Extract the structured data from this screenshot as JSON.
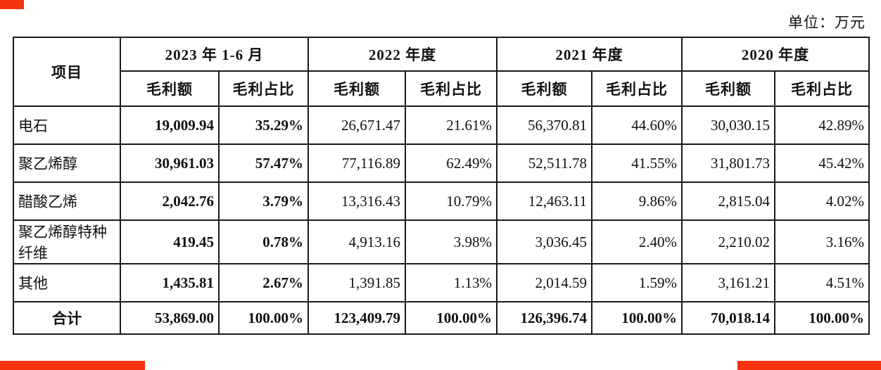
{
  "unit_label": "单位：万元",
  "colors": {
    "accent_red": "#f5330f",
    "border": "#1a1a1a",
    "background": "#ffffff"
  },
  "table": {
    "corner_header": "项目",
    "period_headers": [
      "2023 年 1-6 月",
      "2022 年度",
      "2021 年度",
      "2020 年度"
    ],
    "sub_headers": [
      "毛利额",
      "毛利占比"
    ],
    "rows": [
      {
        "label": "电石",
        "values": [
          "19,009.94",
          "35.29%",
          "26,671.47",
          "21.61%",
          "56,370.81",
          "44.60%",
          "30,030.15",
          "42.89%"
        ]
      },
      {
        "label": "聚乙烯醇",
        "values": [
          "30,961.03",
          "57.47%",
          "77,116.89",
          "62.49%",
          "52,511.78",
          "41.55%",
          "31,801.73",
          "45.42%"
        ]
      },
      {
        "label": "醋酸乙烯",
        "values": [
          "2,042.76",
          "3.79%",
          "13,316.43",
          "10.79%",
          "12,463.11",
          "9.86%",
          "2,815.04",
          "4.02%"
        ]
      },
      {
        "label": "聚乙烯醇特种纤维",
        "values": [
          "419.45",
          "0.78%",
          "4,913.16",
          "3.98%",
          "3,036.45",
          "2.40%",
          "2,210.02",
          "3.16%"
        ]
      },
      {
        "label": "其他",
        "values": [
          "1,435.81",
          "2.67%",
          "1,391.85",
          "1.13%",
          "2,014.59",
          "1.59%",
          "3,161.21",
          "4.51%"
        ]
      }
    ],
    "total_row": {
      "label": "合计",
      "values": [
        "53,869.00",
        "100.00%",
        "123,409.79",
        "100.00%",
        "126,396.74",
        "100.00%",
        "70,018.14",
        "100.00%"
      ]
    }
  }
}
